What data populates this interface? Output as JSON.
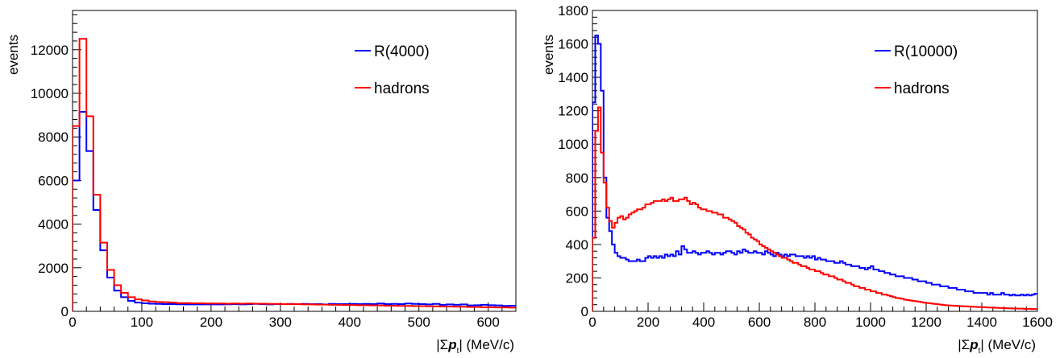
{
  "chart_data": [
    {
      "type": "histogram",
      "xlabel": "|Σpₜ| (MeV/c)",
      "xlabel_parts": {
        "prefix": "|Σ",
        "bold": "p",
        "sub": "t",
        "suffix": "| (MeV/c)"
      },
      "ylabel": "events",
      "xlim": [
        0,
        640
      ],
      "ylim": [
        0,
        13800
      ],
      "xticks": [
        "0",
        "100",
        "200",
        "300",
        "400",
        "500",
        "600"
      ],
      "yticks": [
        "0",
        "2000",
        "4000",
        "6000",
        "8000",
        "10000",
        "12000"
      ],
      "legend_position": "top-right",
      "bin_width": 10,
      "series": [
        {
          "name": "R(4000)",
          "color": "#0000ff",
          "values": [
            6000,
            9150,
            7350,
            4650,
            2800,
            1550,
            950,
            650,
            480,
            400,
            370,
            350,
            340,
            330,
            330,
            325,
            320,
            320,
            320,
            320,
            320,
            320,
            325,
            330,
            320,
            330,
            340,
            330,
            320,
            330,
            330,
            340,
            330,
            340,
            330,
            330,
            320,
            340,
            330,
            330,
            340,
            330,
            340,
            330,
            360,
            330,
            340,
            330,
            360,
            340,
            330,
            320,
            340,
            300,
            320,
            300,
            320,
            270,
            280,
            300,
            280,
            270,
            250,
            260
          ]
        },
        {
          "name": "hadrons",
          "color": "#ff0000",
          "values": [
            8500,
            12500,
            8950,
            5350,
            3150,
            1900,
            1200,
            850,
            650,
            550,
            500,
            450,
            430,
            420,
            400,
            380,
            380,
            370,
            370,
            360,
            360,
            360,
            350,
            360,
            350,
            360,
            350,
            350,
            340,
            340,
            330,
            330,
            330,
            320,
            320,
            310,
            310,
            300,
            300,
            290,
            290,
            280,
            280,
            270,
            270,
            260,
            260,
            250,
            250,
            240,
            240,
            230,
            230,
            220,
            220,
            210,
            210,
            200,
            200,
            190,
            190,
            180,
            180,
            170
          ]
        }
      ]
    },
    {
      "type": "histogram",
      "xlabel": "|Σpₜ| (MeV/c)",
      "xlabel_parts": {
        "prefix": "|Σ",
        "bold": "p",
        "sub": "t",
        "suffix": "| (MeV/c)"
      },
      "ylabel": "events",
      "xlim": [
        0,
        1600
      ],
      "ylim": [
        0,
        1800
      ],
      "xticks": [
        "0",
        "200",
        "400",
        "600",
        "800",
        "1000",
        "1200",
        "1400",
        "1600"
      ],
      "yticks": [
        "0",
        "200",
        "400",
        "600",
        "800",
        "1000",
        "1200",
        "1400",
        "1600",
        "1800"
      ],
      "legend_position": "top-right",
      "bin_width": 10,
      "series": [
        {
          "name": "R(10000)",
          "color": "#0000ff",
          "values": [
            1250,
            1650,
            1600,
            1320,
            800,
            560,
            480,
            400,
            350,
            330,
            320,
            320,
            310,
            300,
            300,
            300,
            310,
            300,
            300,
            320,
            330,
            320,
            330,
            320,
            330,
            320,
            340,
            330,
            340,
            330,
            360,
            340,
            390,
            370,
            350,
            350,
            360,
            350,
            340,
            350,
            350,
            360,
            350,
            340,
            350,
            350,
            340,
            350,
            360,
            360,
            350,
            340,
            360,
            350,
            370,
            360,
            350,
            350,
            360,
            350,
            350,
            340,
            360,
            350,
            340,
            330,
            350,
            340,
            330,
            340,
            330,
            340,
            340,
            330,
            330,
            330,
            320,
            330,
            320,
            330,
            310,
            320,
            310,
            310,
            300,
            300,
            300,
            290,
            290,
            300,
            290,
            280,
            280,
            270,
            270,
            270,
            260,
            260,
            250,
            260,
            270,
            250,
            250,
            240,
            240,
            230,
            230,
            220,
            220,
            210,
            210,
            210,
            200,
            200,
            200,
            190,
            190,
            180,
            180,
            180,
            170,
            170,
            160,
            160,
            160,
            150,
            150,
            150,
            140,
            140,
            140,
            130,
            130,
            130,
            120,
            120,
            120,
            110,
            110,
            110,
            110,
            110,
            100,
            110,
            100,
            100,
            100,
            110,
            100,
            100,
            95,
            100,
            95,
            95,
            100,
            95,
            100,
            95,
            100,
            105
          ]
        },
        {
          "name": "hadrons",
          "color": "#ff0000",
          "values": [
            440,
            1080,
            1220,
            950,
            770,
            620,
            540,
            500,
            530,
            560,
            570,
            550,
            560,
            580,
            590,
            600,
            610,
            610,
            620,
            640,
            640,
            650,
            660,
            660,
            660,
            670,
            660,
            670,
            680,
            660,
            660,
            670,
            670,
            680,
            660,
            640,
            650,
            640,
            620,
            610,
            610,
            600,
            600,
            590,
            590,
            580,
            580,
            560,
            560,
            550,
            540,
            530,
            510,
            500,
            490,
            470,
            460,
            440,
            430,
            420,
            400,
            390,
            380,
            370,
            360,
            350,
            340,
            330,
            320,
            320,
            310,
            300,
            290,
            290,
            280,
            270,
            270,
            260,
            250,
            250,
            240,
            240,
            230,
            220,
            220,
            210,
            210,
            200,
            190,
            190,
            180,
            170,
            170,
            160,
            150,
            150,
            140,
            140,
            130,
            130,
            120,
            120,
            110,
            110,
            100,
            100,
            95,
            90,
            85,
            80,
            78,
            75,
            70,
            68,
            65,
            62,
            60,
            58,
            55,
            52,
            50,
            48,
            46,
            44,
            42,
            40,
            38,
            36,
            35,
            34,
            33,
            32,
            31,
            30,
            30,
            29,
            28,
            27,
            26,
            25,
            25,
            24,
            23,
            22,
            22,
            21,
            20,
            20,
            19,
            18,
            18,
            17,
            17,
            16,
            16,
            15,
            15,
            15,
            14,
            14
          ]
        }
      ]
    }
  ]
}
